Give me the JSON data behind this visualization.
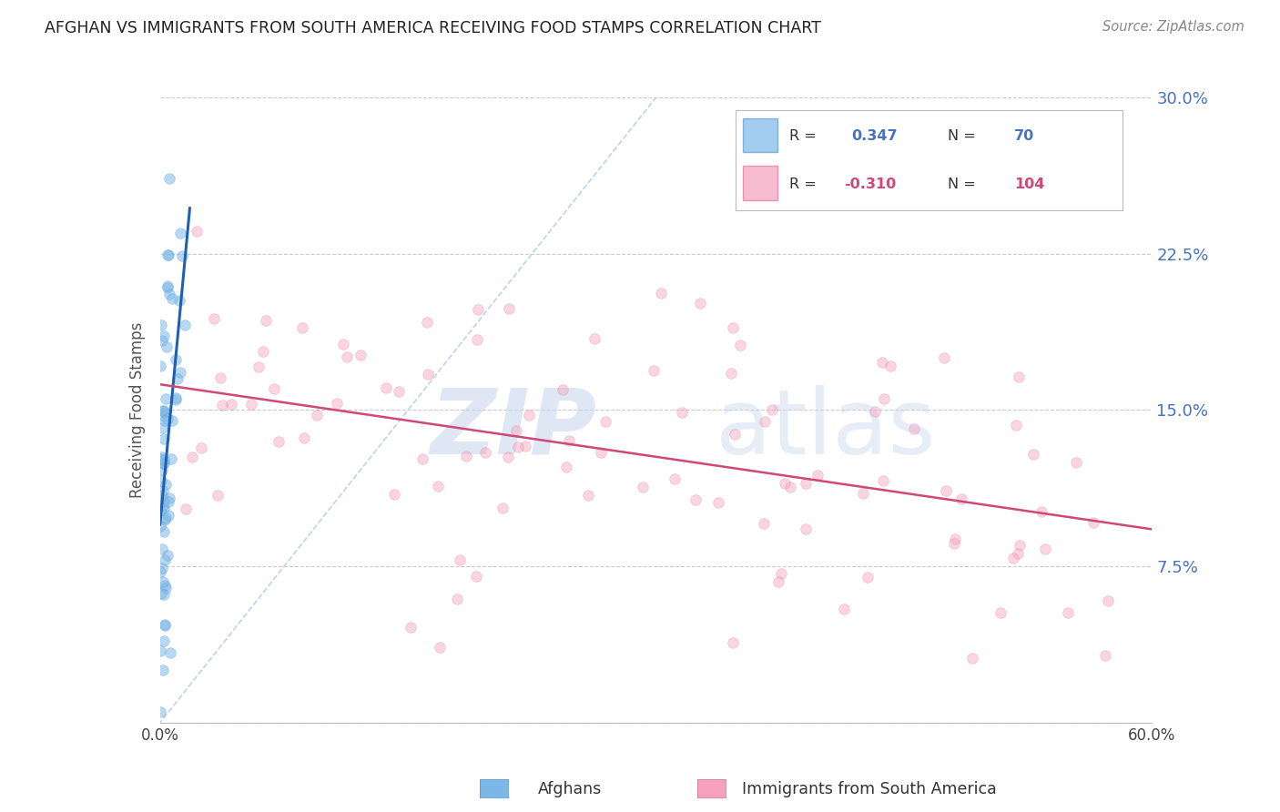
{
  "title": "AFGHAN VS IMMIGRANTS FROM SOUTH AMERICA RECEIVING FOOD STAMPS CORRELATION CHART",
  "source": "Source: ZipAtlas.com",
  "ylabel": "Receiving Food Stamps",
  "xlabel_afghans": "Afghans",
  "xlabel_immigrants": "Immigrants from South America",
  "xmin": 0.0,
  "xmax": 0.6,
  "ymin": 0.0,
  "ymax": 0.3,
  "yticks": [
    0.0,
    0.075,
    0.15,
    0.225,
    0.3
  ],
  "ytick_labels_right": [
    "",
    "7.5%",
    "15.0%",
    "22.5%",
    "30.0%"
  ],
  "blue_color": "#7bb8e8",
  "blue_edge_color": "#5a9fd4",
  "pink_color": "#f5a0bc",
  "pink_edge_color": "#e07898",
  "blue_line_color": "#2060b0",
  "pink_line_color": "#d04878",
  "dashed_line_color": "#b0c8e0",
  "right_axis_color": "#4472c4",
  "legend_R1": "0.347",
  "legend_N1": "70",
  "legend_R2": "-0.310",
  "legend_N2": "104",
  "legend_text_blue": "#4472c4",
  "legend_text_pink": "#d04878"
}
